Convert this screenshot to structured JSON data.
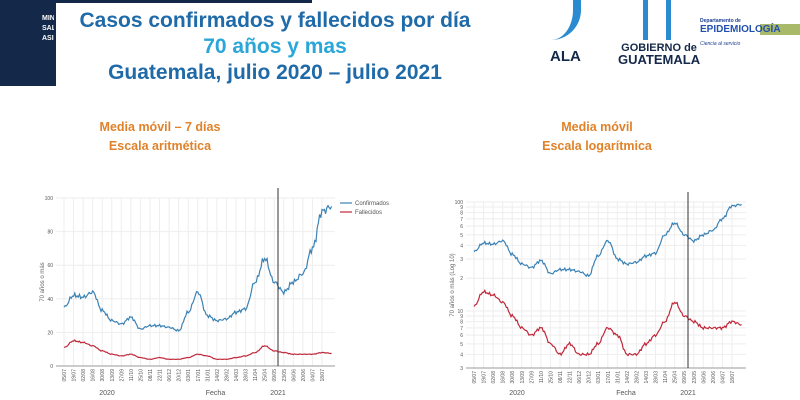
{
  "header": {
    "title_line1": "Casos confirmados y fallecidos por día",
    "title_line2": "70 años y mas",
    "title_line3": "Guatemala, julio 2020 – julio 2021",
    "banner_text": "MIN SAL ASI"
  },
  "logos": {
    "logo1_text": "ALA",
    "logo2_line1": "GOBIERNO de",
    "logo2_line2": "GUATEMALA",
    "logo3_line1": "Departamento de",
    "logo3_line2": "EPIDEMIOLOGÍA",
    "logo3_line3": "Ciencia al servicio"
  },
  "colors": {
    "confirmados": "#3a82b5",
    "fallecidos": "#c0273a",
    "title": "#1f6aa8",
    "subtitle": "#e0822a"
  },
  "chart_data": [
    {
      "type": "line",
      "subtitle_line1": "Media móvil – 7 días",
      "subtitle_line2": "Escala aritmética",
      "xlabel": "Fecha",
      "ylabel": "70 años o más",
      "scale": "linear",
      "ylim": [
        0,
        100
      ],
      "yticks": [
        "0",
        "20",
        "40",
        "60",
        "80",
        "100"
      ],
      "year_labels": [
        "2020",
        "2021"
      ],
      "legend": [
        "Confirmados",
        "Fallecidos"
      ],
      "legend_position": "top-right",
      "grid": true,
      "vline_at": "09/05"
    },
    {
      "type": "line",
      "subtitle_line1": "Media móvil",
      "subtitle_line2": "Escala logarítmica",
      "xlabel": "Fecha",
      "ylabel": "70 años o más (Log 10)",
      "scale": "log",
      "ylim": [
        3,
        100
      ],
      "yticks": [
        {
          "v": 100,
          "l": "100"
        },
        {
          "v": 90,
          "l": "9"
        },
        {
          "v": 80,
          "l": "8"
        },
        {
          "v": 70,
          "l": "7"
        },
        {
          "v": 60,
          "l": "6"
        },
        {
          "v": 50,
          "l": "5"
        },
        {
          "v": 40,
          "l": "4"
        },
        {
          "v": 30,
          "l": "3"
        },
        {
          "v": 20,
          "l": "2"
        },
        {
          "v": 10,
          "l": "10"
        },
        {
          "v": 9,
          "l": "9"
        },
        {
          "v": 8,
          "l": "8"
        },
        {
          "v": 7,
          "l": "7"
        },
        {
          "v": 6,
          "l": "6"
        },
        {
          "v": 5,
          "l": "5"
        },
        {
          "v": 4,
          "l": "4"
        },
        {
          "v": 3,
          "l": "3"
        }
      ],
      "year_labels": [
        "2020",
        "2021"
      ],
      "grid": true,
      "vline_at": "09/05"
    }
  ],
  "x_ticks": [
    "05/07",
    "19/07",
    "02/08",
    "16/08",
    "30/08",
    "13/09",
    "27/09",
    "11/10",
    "25/10",
    "08/11",
    "22/11",
    "06/12",
    "20/12",
    "03/01",
    "17/01",
    "31/01",
    "14/02",
    "28/02",
    "14/03",
    "28/03",
    "11/04",
    "25/04",
    "09/05",
    "23/05",
    "06/06",
    "20/06",
    "04/07",
    "18/07"
  ],
  "series": [
    {
      "name": "Confirmados",
      "values": [
        35,
        42,
        41,
        44,
        33,
        27,
        25,
        29,
        22,
        24,
        24,
        23,
        21,
        32,
        44,
        30,
        27,
        28,
        32,
        34,
        50,
        64,
        50,
        44,
        50,
        55,
        70,
        92,
        95
      ]
    },
    {
      "name": "Fallecidos",
      "values": [
        11,
        15,
        14,
        12,
        9,
        7,
        6,
        7,
        5,
        4,
        5,
        4,
        4,
        5,
        7,
        6,
        4,
        4,
        5,
        6,
        8,
        12,
        9,
        8,
        7,
        7,
        7,
        8,
        7.5
      ]
    }
  ]
}
